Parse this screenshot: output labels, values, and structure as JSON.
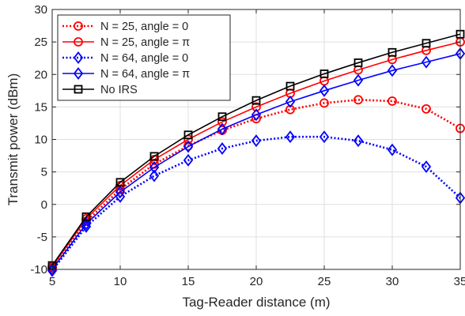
{
  "chart_data": {
    "type": "line",
    "title": "",
    "xlabel": "Tag-Reader distance (m)",
    "ylabel": "Transmit power (dBm)",
    "xlim": [
      5,
      35
    ],
    "ylim": [
      -10,
      30
    ],
    "x_ticks": [
      5,
      10,
      15,
      20,
      25,
      30,
      35
    ],
    "y_ticks": [
      -10,
      -5,
      0,
      5,
      10,
      15,
      20,
      25,
      30
    ],
    "grid": true,
    "legend_position": "top-left",
    "x": [
      5,
      7.5,
      10,
      12.5,
      15,
      17.5,
      20,
      22.5,
      25,
      27.5,
      30,
      32.5,
      35
    ],
    "series": [
      {
        "name": "N = 25, angle = 0",
        "color": "#ff0000",
        "line_style": "dotted",
        "marker": "circle",
        "values": [
          -9.8,
          -2.6,
          2.3,
          6.2,
          9.0,
          11.4,
          13.2,
          14.6,
          15.6,
          16.1,
          15.9,
          14.7,
          11.7
        ]
      },
      {
        "name": "N = 25, angle = π",
        "color": "#ff0000",
        "line_style": "solid",
        "marker": "circle",
        "values": [
          -9.6,
          -2.2,
          2.9,
          6.9,
          10.0,
          12.7,
          15.0,
          17.1,
          19.0,
          20.7,
          22.3,
          23.7,
          25.0
        ]
      },
      {
        "name": "N = 64, angle = 0",
        "color": "#0000ff",
        "line_style": "dotted",
        "marker": "diamond",
        "values": [
          -10.2,
          -3.4,
          1.2,
          4.4,
          6.8,
          8.6,
          9.8,
          10.4,
          10.4,
          9.8,
          8.4,
          5.8,
          1.0
        ]
      },
      {
        "name": "N = 64, angle = π",
        "color": "#0000ff",
        "line_style": "solid",
        "marker": "diamond",
        "values": [
          -10.0,
          -3.0,
          1.9,
          5.7,
          8.9,
          11.6,
          13.8,
          15.8,
          17.5,
          19.1,
          20.6,
          21.9,
          23.2
        ]
      },
      {
        "name": "No IRS",
        "color": "#000000",
        "line_style": "solid",
        "marker": "square",
        "values": [
          -9.4,
          -1.9,
          3.4,
          7.4,
          10.7,
          13.5,
          16.0,
          18.2,
          20.1,
          21.8,
          23.4,
          24.8,
          26.2
        ]
      }
    ]
  }
}
